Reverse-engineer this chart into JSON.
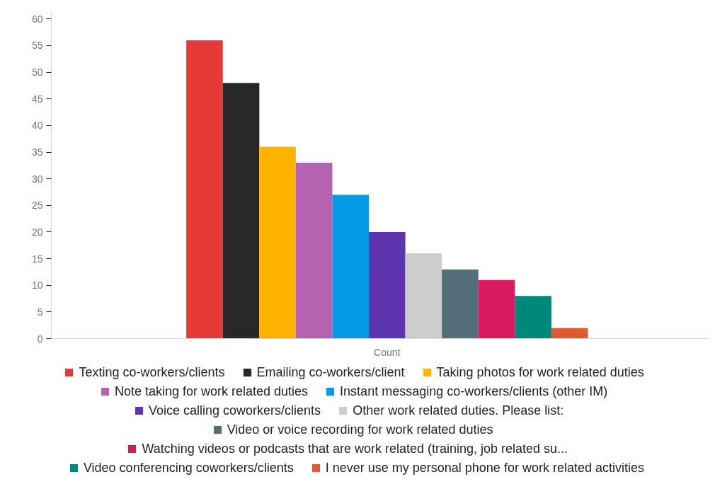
{
  "chart_data": {
    "type": "bar",
    "categories": [
      "Count"
    ],
    "series": [
      {
        "name": "Texting co-workers/clients",
        "color": "#e53935",
        "values": [
          56
        ]
      },
      {
        "name": "Emailing co-workers/client",
        "color": "#272727",
        "values": [
          48
        ]
      },
      {
        "name": "Taking photos for work related duties",
        "color": "#ffb300",
        "values": [
          36
        ]
      },
      {
        "name": "Note taking for work related duties",
        "color": "#b563b0",
        "values": [
          33
        ]
      },
      {
        "name": "Instant messaging co-workers/clients (other IM)",
        "color": "#039be5",
        "values": [
          27
        ]
      },
      {
        "name": "Voice calling coworkers/clients",
        "color": "#5e35b1",
        "values": [
          20
        ]
      },
      {
        "name": "Other work related duties. Please list:",
        "color": "#cccccc",
        "values": [
          16
        ]
      },
      {
        "name": "Video or voice recording for work related duties",
        "color": "#546e7a",
        "values": [
          13
        ]
      },
      {
        "name": "Watching videos or podcasts that are work related (training, job related su...",
        "color": "#d81b60",
        "values": [
          11
        ]
      },
      {
        "name": "Video conferencing coworkers/clients",
        "color": "#00897b",
        "values": [
          8
        ]
      },
      {
        "name": "I never use my personal phone for work related activities",
        "color": "#dd5a33",
        "values": [
          2
        ]
      }
    ],
    "ylim": [
      0,
      61.5
    ],
    "yticks": [
      0,
      5,
      10,
      15,
      20,
      25,
      30,
      35,
      40,
      45,
      50,
      55,
      60
    ],
    "grid": false,
    "legend": "bottom"
  }
}
